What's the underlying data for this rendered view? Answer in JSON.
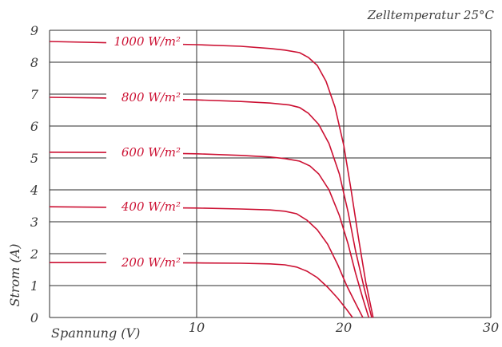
{
  "chart_data": {
    "type": "line",
    "title": "",
    "annotation": "Zelltemperatur 25°C",
    "xlabel": "Spannung (V)",
    "ylabel": "Strom (A)",
    "xlim": [
      0,
      30
    ],
    "ylim": [
      0,
      9
    ],
    "x_ticks": [
      "10",
      "20",
      "30"
    ],
    "y_ticks": [
      "0",
      "1",
      "2",
      "3",
      "4",
      "5",
      "6",
      "7",
      "8",
      "9"
    ],
    "grid": true,
    "color": "#cc1133",
    "series": [
      {
        "name": "1000 W/m²",
        "points": [
          [
            0,
            8.65
          ],
          [
            5,
            8.6
          ],
          [
            10,
            8.55
          ],
          [
            13,
            8.5
          ],
          [
            15,
            8.43
          ],
          [
            16,
            8.38
          ],
          [
            17,
            8.3
          ],
          [
            17.6,
            8.15
          ],
          [
            18.2,
            7.9
          ],
          [
            18.8,
            7.4
          ],
          [
            19.4,
            6.6
          ],
          [
            20,
            5.4
          ],
          [
            20.5,
            4.0
          ],
          [
            21,
            2.5
          ],
          [
            21.5,
            1.1
          ],
          [
            22,
            0
          ]
        ]
      },
      {
        "name": "800 W/m²",
        "points": [
          [
            0,
            6.9
          ],
          [
            5,
            6.87
          ],
          [
            10,
            6.82
          ],
          [
            13,
            6.77
          ],
          [
            15,
            6.72
          ],
          [
            16.3,
            6.66
          ],
          [
            17,
            6.58
          ],
          [
            17.6,
            6.4
          ],
          [
            18.3,
            6.05
          ],
          [
            19,
            5.45
          ],
          [
            19.7,
            4.5
          ],
          [
            20.3,
            3.3
          ],
          [
            20.8,
            2.1
          ],
          [
            21.4,
            0.9
          ],
          [
            21.9,
            0
          ]
        ]
      },
      {
        "name": "600 W/m²",
        "points": [
          [
            0,
            5.18
          ],
          [
            5,
            5.17
          ],
          [
            10,
            5.13
          ],
          [
            13,
            5.08
          ],
          [
            15,
            5.03
          ],
          [
            16,
            4.98
          ],
          [
            17,
            4.9
          ],
          [
            17.7,
            4.75
          ],
          [
            18.3,
            4.5
          ],
          [
            19,
            4.0
          ],
          [
            19.7,
            3.2
          ],
          [
            20.3,
            2.3
          ],
          [
            20.8,
            1.4
          ],
          [
            21.3,
            0.6
          ],
          [
            21.7,
            0
          ]
        ]
      },
      {
        "name": "400 W/m²",
        "points": [
          [
            0,
            3.47
          ],
          [
            5,
            3.45
          ],
          [
            10,
            3.43
          ],
          [
            13,
            3.4
          ],
          [
            15,
            3.37
          ],
          [
            16,
            3.33
          ],
          [
            16.8,
            3.25
          ],
          [
            17.5,
            3.05
          ],
          [
            18.2,
            2.75
          ],
          [
            18.9,
            2.3
          ],
          [
            19.6,
            1.65
          ],
          [
            20.2,
            1.0
          ],
          [
            20.8,
            0.45
          ],
          [
            21.3,
            0
          ]
        ]
      },
      {
        "name": "200 W/m²",
        "points": [
          [
            0,
            1.72
          ],
          [
            5,
            1.72
          ],
          [
            10,
            1.71
          ],
          [
            13,
            1.7
          ],
          [
            15,
            1.68
          ],
          [
            16,
            1.65
          ],
          [
            16.8,
            1.58
          ],
          [
            17.5,
            1.45
          ],
          [
            18.2,
            1.25
          ],
          [
            18.9,
            0.95
          ],
          [
            19.6,
            0.6
          ],
          [
            20.2,
            0.25
          ],
          [
            20.6,
            0
          ]
        ]
      }
    ]
  }
}
